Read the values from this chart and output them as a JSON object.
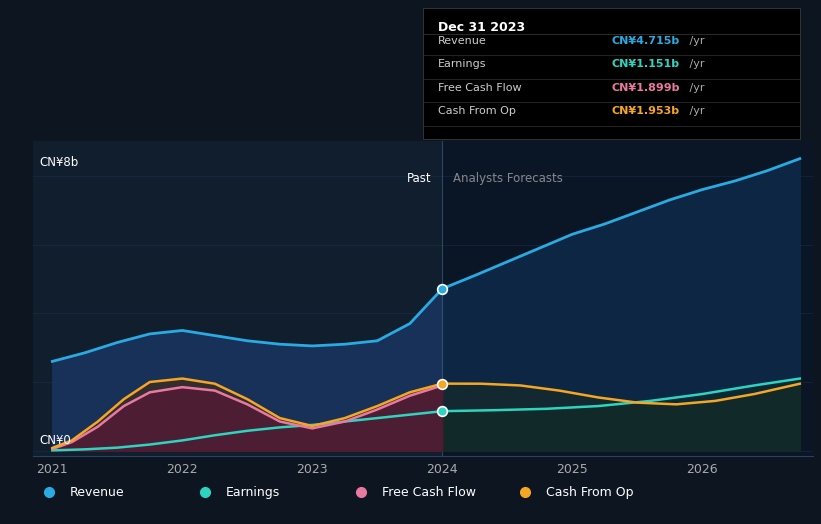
{
  "bg_color": "#0d1520",
  "past_bg": "#111e2e",
  "future_bg": "#0a1525",
  "ylabel_top": "CN¥8b",
  "ylabel_bottom": "CN¥0",
  "xlabel_ticks": [
    2021,
    2022,
    2023,
    2024,
    2025,
    2026
  ],
  "divider_x": 2024.0,
  "past_label": "Past",
  "forecast_label": "Analysts Forecasts",
  "revenue_color": "#29abe2",
  "earnings_color": "#2dd4bf",
  "fcf_color": "#e879a0",
  "cashop_color": "#f5a623",
  "legend_items": [
    "Revenue",
    "Earnings",
    "Free Cash Flow",
    "Cash From Op"
  ],
  "tooltip": {
    "title": "Dec 31 2023",
    "rows": [
      {
        "label": "Revenue",
        "value_bold": "CN¥4.715b",
        "value_rest": " /yr",
        "color": "#29abe2"
      },
      {
        "label": "Earnings",
        "value_bold": "CN¥1.151b",
        "value_rest": " /yr",
        "color": "#2dd4bf"
      },
      {
        "label": "Free Cash Flow",
        "value_bold": "CN¥1.899b",
        "value_rest": " /yr",
        "color": "#e879a0"
      },
      {
        "label": "Cash From Op",
        "value_bold": "CN¥1.953b",
        "value_rest": " /yr",
        "color": "#f5a623"
      }
    ]
  },
  "revenue_past_x": [
    2021.0,
    2021.25,
    2021.5,
    2021.75,
    2022.0,
    2022.25,
    2022.5,
    2022.75,
    2023.0,
    2023.25,
    2023.5,
    2023.75,
    2024.0
  ],
  "revenue_past_y": [
    2.6,
    2.85,
    3.15,
    3.4,
    3.5,
    3.35,
    3.2,
    3.1,
    3.05,
    3.1,
    3.2,
    3.7,
    4.715
  ],
  "revenue_future_x": [
    2024.0,
    2024.25,
    2024.5,
    2024.75,
    2025.0,
    2025.25,
    2025.5,
    2025.75,
    2026.0,
    2026.25,
    2026.5,
    2026.75
  ],
  "revenue_future_y": [
    4.715,
    5.1,
    5.5,
    5.9,
    6.3,
    6.6,
    6.95,
    7.3,
    7.6,
    7.85,
    8.15,
    8.5
  ],
  "earnings_past_x": [
    2021.0,
    2021.25,
    2021.5,
    2021.75,
    2022.0,
    2022.25,
    2022.5,
    2022.75,
    2023.0,
    2023.25,
    2023.5,
    2023.75,
    2024.0
  ],
  "earnings_past_y": [
    0.01,
    0.04,
    0.09,
    0.18,
    0.3,
    0.45,
    0.58,
    0.68,
    0.75,
    0.85,
    0.95,
    1.05,
    1.151
  ],
  "earnings_future_x": [
    2024.0,
    2024.4,
    2024.8,
    2025.2,
    2025.6,
    2026.0,
    2026.4,
    2026.75
  ],
  "earnings_future_y": [
    1.151,
    1.18,
    1.22,
    1.3,
    1.45,
    1.65,
    1.9,
    2.1
  ],
  "fcf_past_x": [
    2021.0,
    2021.15,
    2021.35,
    2021.55,
    2021.75,
    2022.0,
    2022.25,
    2022.5,
    2022.75,
    2023.0,
    2023.25,
    2023.5,
    2023.75,
    2024.0
  ],
  "fcf_past_y": [
    0.05,
    0.25,
    0.7,
    1.3,
    1.7,
    1.85,
    1.75,
    1.35,
    0.85,
    0.65,
    0.85,
    1.2,
    1.6,
    1.899
  ],
  "cashop_past_x": [
    2021.0,
    2021.15,
    2021.35,
    2021.55,
    2021.75,
    2022.0,
    2022.25,
    2022.5,
    2022.75,
    2023.0,
    2023.25,
    2023.5,
    2023.75,
    2024.0
  ],
  "cashop_past_y": [
    0.08,
    0.3,
    0.85,
    1.5,
    2.0,
    2.1,
    1.95,
    1.5,
    0.95,
    0.72,
    0.95,
    1.3,
    1.7,
    1.953
  ],
  "cashop_future_x": [
    2024.0,
    2024.3,
    2024.6,
    2024.9,
    2025.2,
    2025.5,
    2025.8,
    2026.1,
    2026.4,
    2026.75
  ],
  "cashop_future_y": [
    1.953,
    1.95,
    1.9,
    1.75,
    1.55,
    1.4,
    1.35,
    1.45,
    1.65,
    1.95
  ],
  "xlim": [
    2020.85,
    2026.85
  ],
  "ylim": [
    -0.15,
    9.0
  ],
  "grid_y": [
    0,
    2,
    4,
    6,
    8
  ],
  "grid_color": "#1e3a5f",
  "dot_rev_y": 4.715,
  "dot_cop_y": 1.953,
  "dot_earn_y": 1.151
}
